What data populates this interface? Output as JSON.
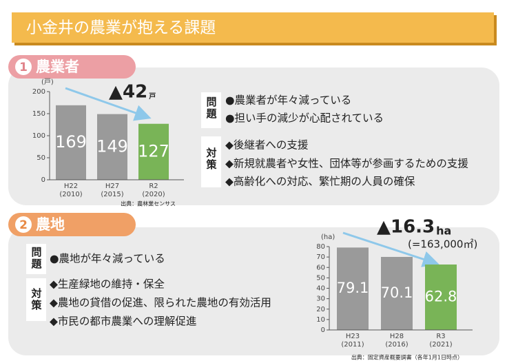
{
  "header": {
    "title": "小金井の農業が抱える課題"
  },
  "sections": [
    {
      "number": "1",
      "title": "農業者",
      "problem_label": "問題",
      "problems": [
        "●農業者が年々減っている",
        "●担い手の減少が心配されている"
      ],
      "measure_label": "対策",
      "measures": [
        "◆後継者への支援",
        "◆新規就農者や女性、団体等が参画するための支援",
        "◆高齢化への対応、繁忙期の人員の確保"
      ]
    },
    {
      "number": "2",
      "title": "農地",
      "problem_label": "問題",
      "problems": [
        "●農地が年々減っている"
      ],
      "measure_label": "対策",
      "measures": [
        "◆生産緑地の維持・保全",
        "◆農地の貸借の促進、限られた農地の有効活用",
        "◆市民の都市農業への理解促進"
      ]
    }
  ],
  "chart_data": [
    {
      "type": "bar",
      "unit_label": "(戸)",
      "categories": [
        "H22",
        "H27",
        "R2"
      ],
      "category_years": [
        "(2010)",
        "(2015)",
        "(2020)"
      ],
      "values": [
        169,
        149,
        127
      ],
      "colors": [
        "#9a9a9a",
        "#9a9a9a",
        "#79b457"
      ],
      "ylim": [
        0,
        200
      ],
      "yticks": [
        0,
        50,
        100,
        150,
        200
      ],
      "annotation": "▲42",
      "annotation_unit": "戸",
      "source": "出典：農林業センサス"
    },
    {
      "type": "bar",
      "unit_label": "(ha)",
      "categories": [
        "H23",
        "H28",
        "R3"
      ],
      "category_years": [
        "(2011)",
        "(2016)",
        "(2021)"
      ],
      "values": [
        79.1,
        70.1,
        62.8
      ],
      "colors": [
        "#9a9a9a",
        "#9a9a9a",
        "#79b457"
      ],
      "ylim": [
        0,
        80
      ],
      "yticks": [
        0,
        10,
        20,
        30,
        40,
        50,
        60,
        70,
        80
      ],
      "annotation": "▲16.3",
      "annotation_unit": "ha",
      "annotation_note": "(=163,000㎡)",
      "source": "出典：固定資産概要調書（各年1月1日時点）"
    }
  ]
}
